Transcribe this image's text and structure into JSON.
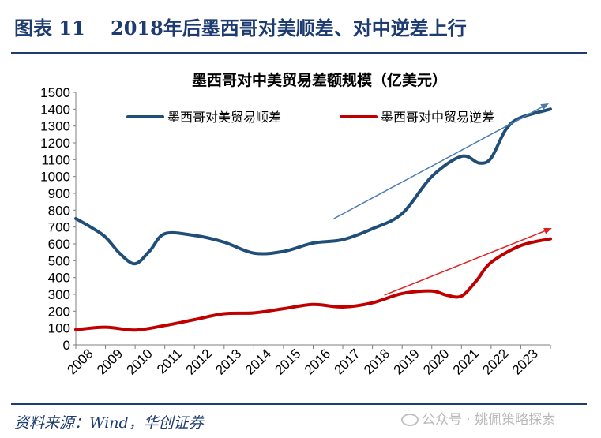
{
  "figure": {
    "label": "图表 11",
    "title": "2018年后墨西哥对美顺差、对中逆差上行",
    "source": "资料来源：Wind，华创证券",
    "watermark": "公众号 · 姚佩策略探索"
  },
  "chart_data": {
    "type": "line",
    "title": "墨西哥对中美贸易差额规模（亿美元）",
    "xlabel": "",
    "ylabel": "",
    "ylim": [
      0,
      1500
    ],
    "ytick_step": 100,
    "x_categories": [
      "2008",
      "2009",
      "2010",
      "2011",
      "2012",
      "2013",
      "2014",
      "2015",
      "2016",
      "2017",
      "2018",
      "2019",
      "2020",
      "2021",
      "2022",
      "2023"
    ],
    "grid": false,
    "legend_position": "top",
    "series": [
      {
        "name": "墨西哥对美贸易顺差",
        "color": "#1f4e79",
        "points": [
          [
            0.0,
            750
          ],
          [
            0.5,
            700
          ],
          [
            1.0,
            640
          ],
          [
            1.5,
            540
          ],
          [
            2.0,
            482
          ],
          [
            2.5,
            560
          ],
          [
            3.0,
            660
          ],
          [
            4.0,
            650
          ],
          [
            5.0,
            610
          ],
          [
            6.0,
            545
          ],
          [
            7.0,
            555
          ],
          [
            8.0,
            605
          ],
          [
            9.0,
            625
          ],
          [
            10.0,
            690
          ],
          [
            11.0,
            780
          ],
          [
            12.0,
            1000
          ],
          [
            13.0,
            1120
          ],
          [
            13.6,
            1080
          ],
          [
            14.0,
            1110
          ],
          [
            14.5,
            1280
          ],
          [
            15.0,
            1350
          ],
          [
            16.0,
            1400
          ]
        ]
      },
      {
        "name": "墨西哥对中贸易逆差",
        "color": "#c00000",
        "points": [
          [
            0.0,
            90
          ],
          [
            1.0,
            105
          ],
          [
            2.0,
            88
          ],
          [
            3.0,
            115
          ],
          [
            4.0,
            150
          ],
          [
            5.0,
            185
          ],
          [
            6.0,
            190
          ],
          [
            7.0,
            215
          ],
          [
            8.0,
            240
          ],
          [
            9.0,
            225
          ],
          [
            10.0,
            250
          ],
          [
            11.0,
            305
          ],
          [
            12.0,
            320
          ],
          [
            12.5,
            295
          ],
          [
            13.0,
            290
          ],
          [
            13.5,
            380
          ],
          [
            14.0,
            490
          ],
          [
            15.0,
            590
          ],
          [
            16.0,
            630
          ]
        ]
      }
    ],
    "annotations": [
      {
        "type": "arrow",
        "color": "#4a7ab0",
        "from": [
          8.7,
          750
        ],
        "to": [
          15.9,
          1430
        ]
      },
      {
        "type": "arrow",
        "color": "#e02020",
        "from": [
          10.4,
          295
        ],
        "to": [
          16.0,
          690
        ]
      }
    ]
  }
}
